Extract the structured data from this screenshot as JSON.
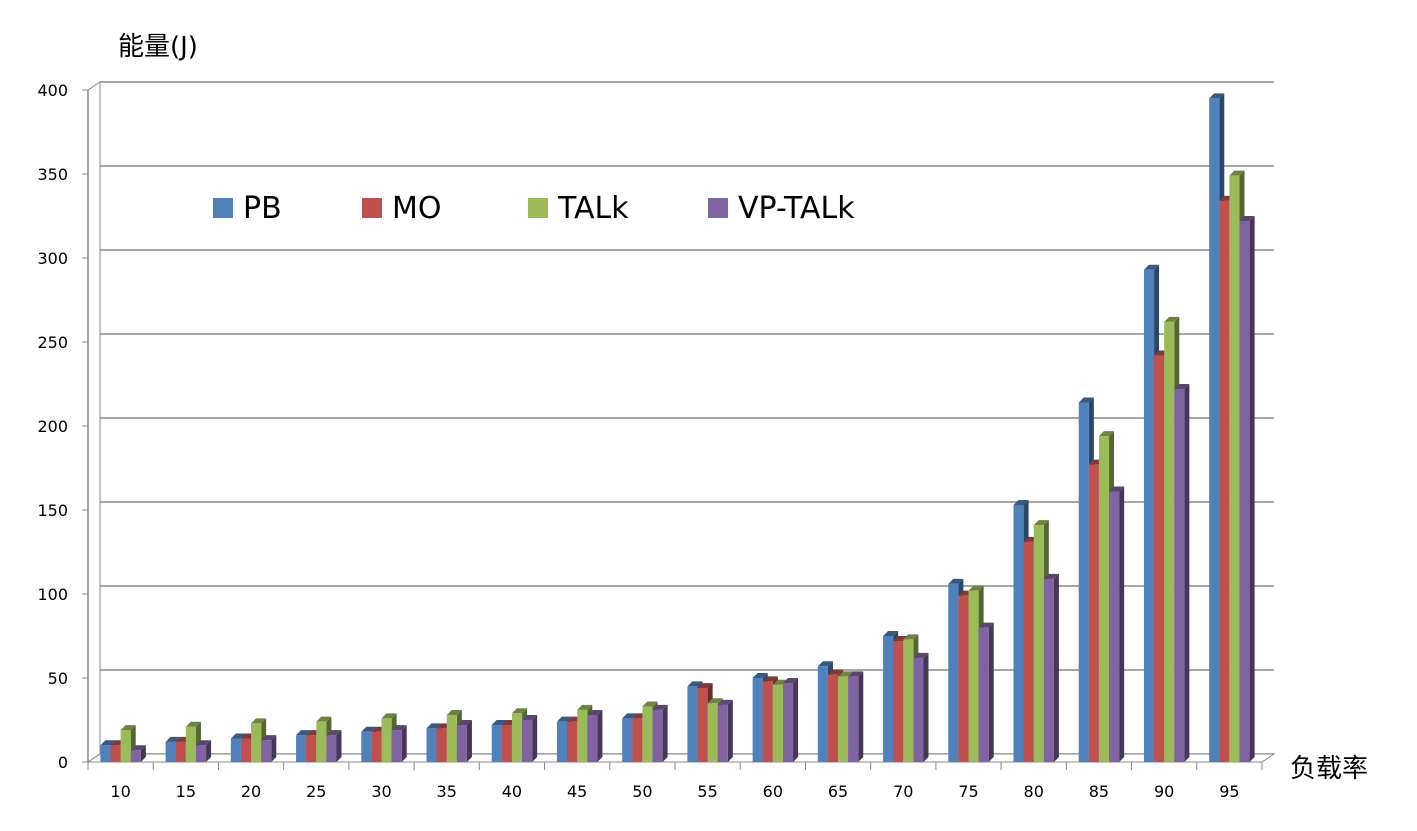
{
  "chart_data": {
    "type": "bar",
    "style": "3d-clustered-column",
    "ylabel": "能量(J)",
    "xlabel": "负载率",
    "ylim": [
      0,
      400
    ],
    "yticks": [
      0,
      50,
      100,
      150,
      200,
      250,
      300,
      350,
      400
    ],
    "grid": true,
    "legend_position": "top-left",
    "categories": [
      "10",
      "15",
      "20",
      "25",
      "30",
      "35",
      "40",
      "45",
      "50",
      "55",
      "60",
      "65",
      "70",
      "75",
      "80",
      "85",
      "90",
      "95"
    ],
    "series": [
      {
        "name": "PB",
        "color": "#4F81BD",
        "values": [
          10,
          12,
          14,
          16,
          18,
          20,
          22,
          24,
          26,
          45,
          50,
          57,
          75,
          106,
          153,
          214,
          293,
          395
        ]
      },
      {
        "name": "MO",
        "color": "#C0504D",
        "values": [
          10,
          12,
          14,
          16,
          18,
          20,
          22,
          24,
          26,
          44,
          48,
          52,
          72,
          99,
          131,
          177,
          242,
          334
        ]
      },
      {
        "name": "TALk",
        "color": "#9BBB59",
        "values": [
          19,
          21,
          23,
          24,
          26,
          28,
          29,
          31,
          33,
          35,
          46,
          51,
          73,
          102,
          141,
          194,
          262,
          349
        ]
      },
      {
        "name": "VP-TALk",
        "color": "#8064A2",
        "values": [
          7,
          10,
          13,
          16,
          19,
          22,
          25,
          28,
          31,
          34,
          47,
          51,
          62,
          80,
          109,
          161,
          222,
          322
        ]
      }
    ]
  }
}
